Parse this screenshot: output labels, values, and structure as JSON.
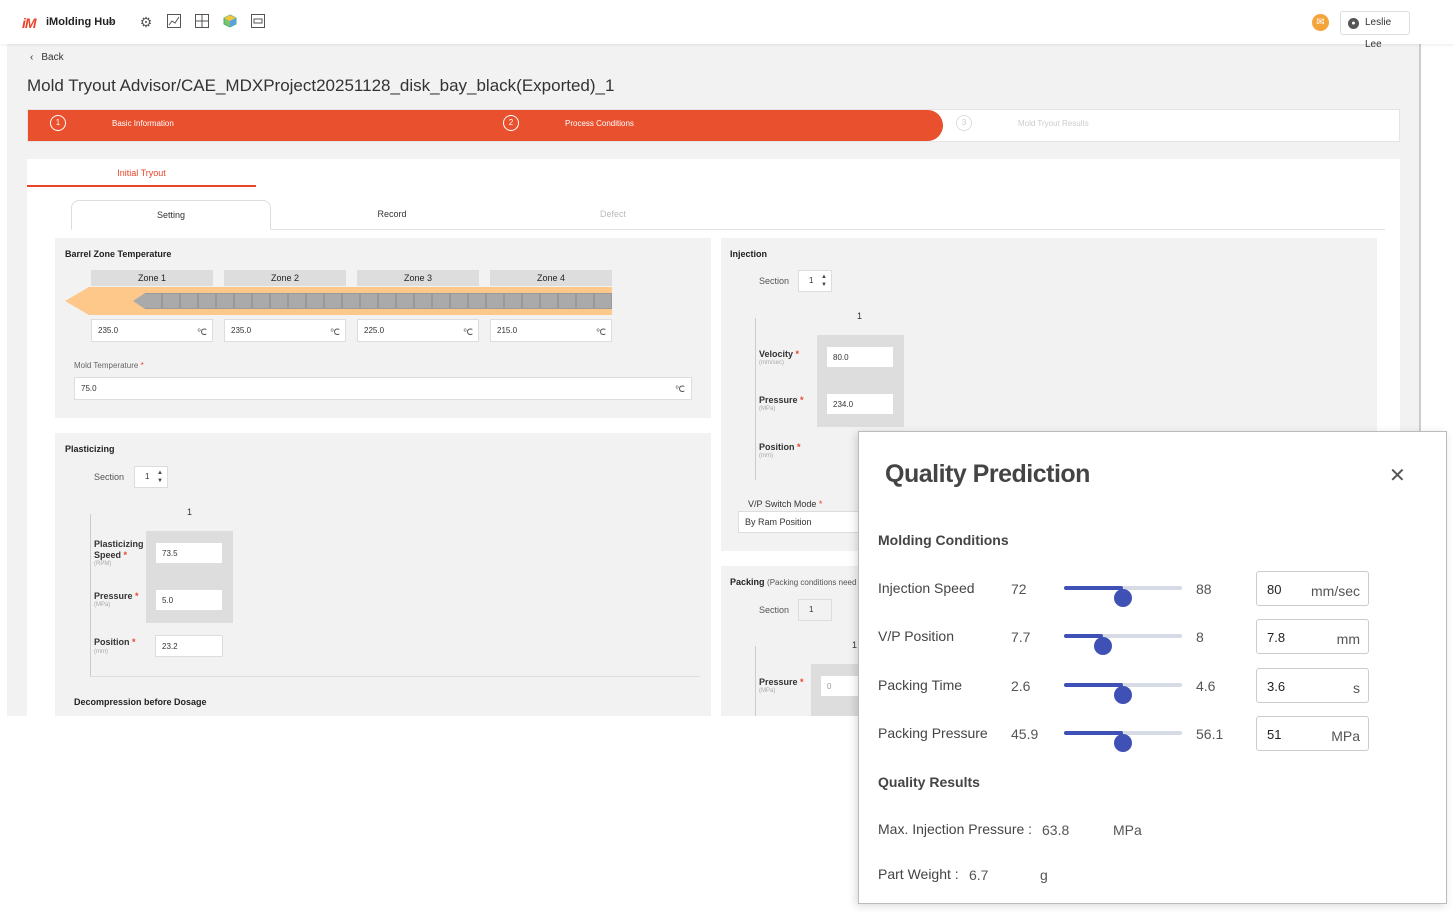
{
  "header": {
    "logo": "iM",
    "app_name": "iMolding Hub",
    "icons": [
      "settings-icon",
      "chart-icon",
      "grid-icon",
      "cube-icon",
      "monitor-icon"
    ],
    "user_name": "Leslie Lee"
  },
  "nav": {
    "back_label": "Back"
  },
  "page_title": "Mold Tryout Advisor/CAE_MDXProject20251128_disk_bay_black(Exported)_1",
  "stepper": {
    "steps": [
      {
        "num": "1",
        "label": "Basic Information"
      },
      {
        "num": "2",
        "label": "Process Conditions"
      },
      {
        "num": "3",
        "label": "Mold Tryout Results"
      }
    ]
  },
  "tryout_tab": "Initial Tryout",
  "subtabs": [
    "Setting",
    "Record",
    "Defect"
  ],
  "barrel": {
    "title": "Barrel Zone Temperature",
    "zones": [
      {
        "label": "Zone 1",
        "value": "235.0"
      },
      {
        "label": "Zone 2",
        "value": "235.0"
      },
      {
        "label": "Zone 3",
        "value": "225.0"
      },
      {
        "label": "Zone 4",
        "value": "215.0"
      }
    ],
    "unit": "℃",
    "mold_temp_label": "Mold Temperature",
    "mold_temp_value": "75.0"
  },
  "plasticizing": {
    "title": "Plasticizing",
    "section_label": "Section",
    "section_value": "1",
    "column": "1",
    "speed_label_1": "Plasticizing",
    "speed_label_2": "Speed",
    "speed_unit": "(RPM)",
    "speed_value": "73.5",
    "pressure_label": "Pressure",
    "pressure_unit": "(MPa)",
    "pressure_value": "5.0",
    "position_label": "Position",
    "position_unit": "(mm)",
    "position_value": "23.2",
    "decompression_label": "Decompression before Dosage"
  },
  "injection": {
    "title": "Injection",
    "section_label": "Section",
    "section_value": "1",
    "column": "1",
    "velocity_label": "Velocity",
    "velocity_unit": "(mm/sec)",
    "velocity_value": "80.0",
    "pressure_label": "Pressure",
    "pressure_unit": "(MPa)",
    "pressure_value": "234.0",
    "position_label": "Position",
    "position_unit": "(mm)",
    "vp_mode_label": "V/P Switch Mode",
    "vp_mode_value": "By Ram Position"
  },
  "packing": {
    "title": "Packing",
    "note": "(Packing conditions need",
    "section_label": "Section",
    "section_value": "1",
    "column": "1",
    "pressure_label": "Pressure",
    "pressure_unit": "(MPa)",
    "pressure_value": "0"
  },
  "quality_modal": {
    "title": "Quality Prediction",
    "close_icon": "close-icon",
    "conditions_title": "Molding Conditions",
    "conditions": [
      {
        "label": "Injection Speed",
        "min": "72",
        "max": "88",
        "value": "80",
        "unit": "mm/sec",
        "fraction": 0.5
      },
      {
        "label": "V/P Position",
        "min": "7.7",
        "max": "8",
        "value": "7.8",
        "unit": "mm",
        "fraction": 0.33
      },
      {
        "label": "Packing Time",
        "min": "2.6",
        "max": "4.6",
        "value": "3.6",
        "unit": "s",
        "fraction": 0.5
      },
      {
        "label": "Packing Pressure",
        "min": "45.9",
        "max": "56.1",
        "value": "51",
        "unit": "MPa",
        "fraction": 0.5
      }
    ],
    "results_title": "Quality Results",
    "results": [
      {
        "label": "Max. Injection Pressure :",
        "value": "63.8",
        "unit": "MPa"
      },
      {
        "label": "Part Weight :",
        "value": "6.7",
        "unit": "g"
      }
    ]
  },
  "colors": {
    "accent": "#e8502e",
    "slider": "#3f51b5",
    "mail": "#f4a43b"
  }
}
